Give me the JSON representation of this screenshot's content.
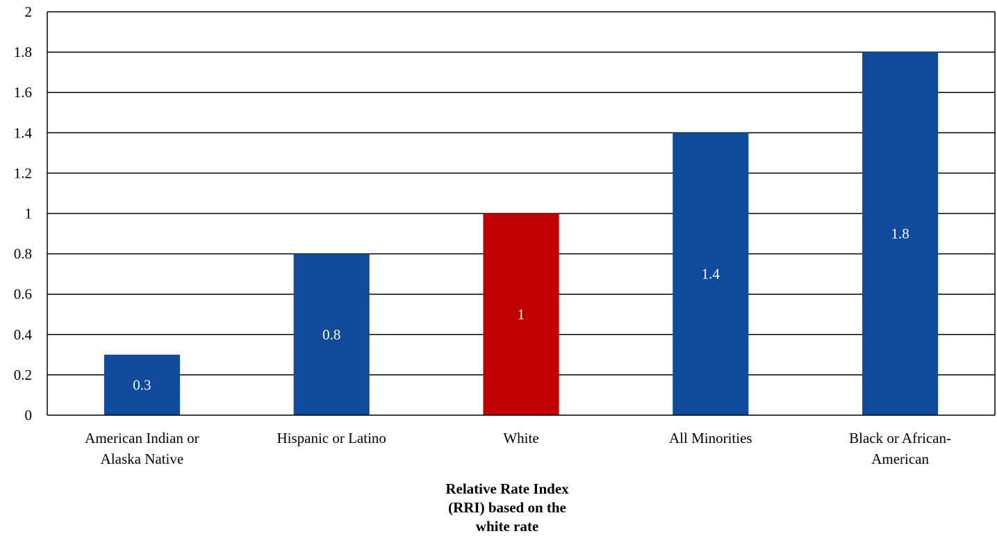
{
  "chart_data": {
    "type": "bar",
    "categories": [
      [
        "American Indian or",
        "Alaska Native"
      ],
      [
        "Hispanic or Latino"
      ],
      [
        "White"
      ],
      [
        "All Minorities"
      ],
      [
        "Black or African-",
        "American"
      ]
    ],
    "values": [
      0.3,
      0.8,
      1,
      1.4,
      1.8
    ],
    "data_labels": [
      "0.3",
      "0.8",
      "1",
      "1.4",
      "1.8"
    ],
    "bar_colors": [
      "#0f4a9c",
      "#0f4a9c",
      "#c00000",
      "#0f4a9c",
      "#0f4a9c"
    ],
    "data_label_color": "#ffffff",
    "y_ticks": [
      "0",
      "0.2",
      "0.4",
      "0.6",
      "0.8",
      "1",
      "1.2",
      "1.4",
      "1.6",
      "1.8",
      "2"
    ],
    "ylim": [
      0,
      2
    ],
    "grid": true,
    "legend": "none",
    "xlabel": "Relative Rate Index (RRI) based on the white rate",
    "xlabel_lines": [
      "Relative Rate Index",
      "(RRI) based on the",
      "white rate"
    ]
  }
}
